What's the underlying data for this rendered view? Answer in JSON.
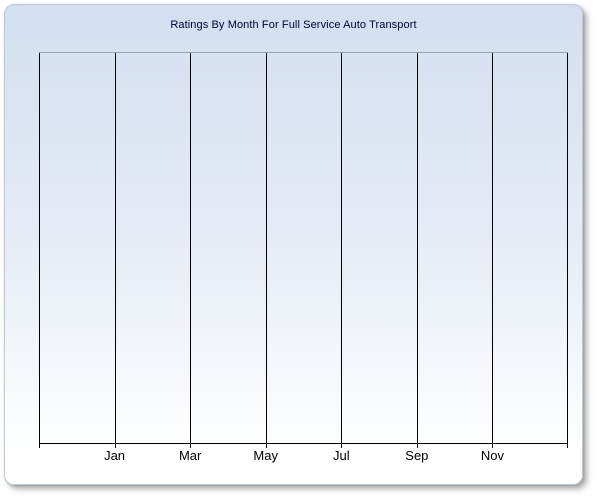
{
  "chart_data": {
    "type": "line",
    "title": "Ratings By Month For Full Service Auto Transport",
    "xlabel": "",
    "ylabel": "",
    "x_tick_labels": [
      "Jan",
      "Mar",
      "May",
      "Jul",
      "Sep",
      "Nov"
    ],
    "series": [],
    "layout": {
      "vertical_gridlines": 8,
      "label_gridline_indexes": [
        1,
        2,
        3,
        4,
        5,
        6
      ],
      "grid": "vertical-only",
      "legend": "none",
      "y_tick_labels": "none",
      "plot_is_empty": true
    }
  },
  "colors": {
    "panel_gradient_top": "#d3dff1",
    "panel_gradient_bottom": "#ffffff",
    "panel_border": "#bcc8da",
    "gridline": "#000000",
    "plot_top_border": "#a0a6b0",
    "axis_line": "#000000",
    "title_text": "#000033",
    "tick_label_text": "#000000"
  }
}
